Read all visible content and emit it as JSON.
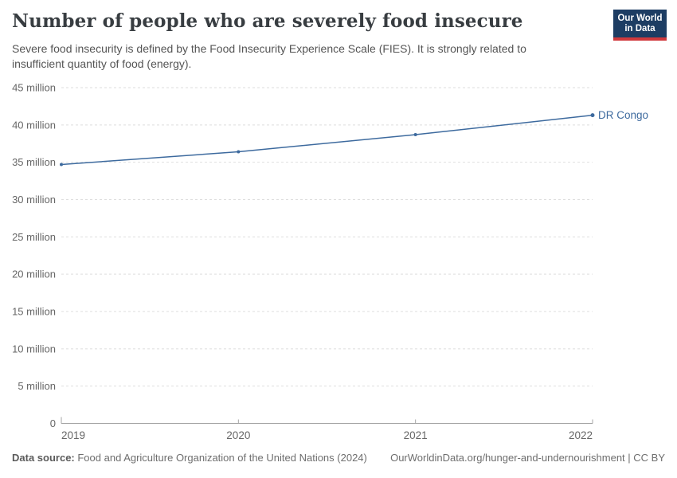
{
  "header": {
    "title": "Number of people who are severely food insecure",
    "subtitle": "Severe food insecurity is defined by the Food Insecurity Experience Scale (FIES). It is strongly related to insufficient quantity of food (energy).",
    "logo": {
      "line1": "Our World",
      "line2": "in Data"
    }
  },
  "chart_data": {
    "type": "line",
    "title": "Number of people who are severely food insecure",
    "unit": "people",
    "x": [
      2019,
      2020,
      2021,
      2022
    ],
    "xtick_labels": [
      "2019",
      "2020",
      "2021",
      "2022"
    ],
    "series": [
      {
        "name": "DR Congo",
        "color": "#3d6a9e",
        "values_millions": [
          34.7,
          36.4,
          38.7,
          41.3
        ]
      }
    ],
    "ylim_millions": [
      0,
      45
    ],
    "ytick_values_millions": [
      0,
      5,
      10,
      15,
      20,
      25,
      30,
      35,
      40,
      45
    ],
    "ytick_labels": [
      "0",
      "5 million",
      "10 million",
      "15 million",
      "20 million",
      "25 million",
      "30 million",
      "35 million",
      "40 million",
      "45 million"
    ],
    "grid": "horizontal-dashed",
    "legend_position": "end-of-line-label"
  },
  "colors": {
    "line": "#3d6a9e",
    "grid": "#dedede",
    "axis": "#a5a5a5",
    "tick_text": "#666666"
  },
  "footer": {
    "datasource_label": "Data source:",
    "datasource_text": " Food and Agriculture Organization of the United Nations (2024)",
    "credit": "OurWorldinData.org/hunger-and-undernourishment | CC BY"
  }
}
